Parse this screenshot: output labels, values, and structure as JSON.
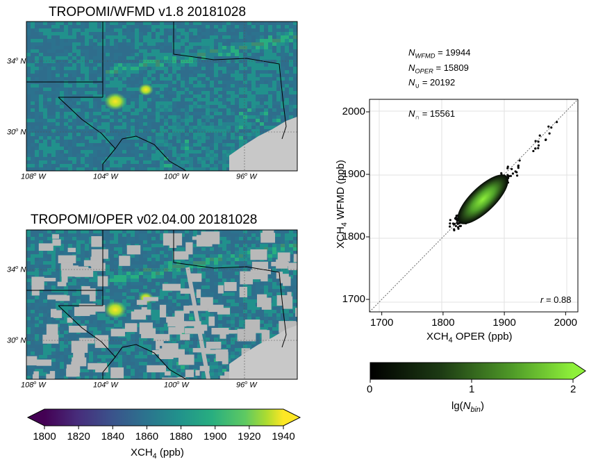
{
  "maps": [
    {
      "title": "TROPOMI/WFMD v1.8  20181028",
      "lat_ticks": [
        "34",
        "30"
      ],
      "lon_ticks": [
        "108",
        "104",
        "100",
        "96"
      ],
      "lat_suffix": "N",
      "lon_suffix": "W",
      "has_gaps": false
    },
    {
      "title": "TROPOMI/OPER v02.04.00  20181028",
      "lat_ticks": [
        "34",
        "30"
      ],
      "lon_ticks": [
        "108",
        "104",
        "100",
        "96"
      ],
      "lat_suffix": "N",
      "lon_suffix": "W",
      "has_gaps": true
    }
  ],
  "map_colorbar": {
    "label_pre": "XCH",
    "label_sub": "4",
    "label_post": " (ppb)",
    "ticks": [
      "1800",
      "1820",
      "1840",
      "1860",
      "1880",
      "1900",
      "1920",
      "1940"
    ],
    "range": [
      1800,
      1940
    ],
    "colormap": "viridis",
    "extend": "both"
  },
  "scatter": {
    "stats": {
      "n_wfmd_label": "N",
      "n_wfmd_sub": "WFMD",
      "n_wfmd_value": " = 19944",
      "n_oper_label": "N",
      "n_oper_sub": "OPER",
      "n_oper_value": " = 15809",
      "n_union_label": "N",
      "n_union_sub": "∪",
      "n_union_value": " = 20192",
      "n_inter_label": "N",
      "n_inter_sub": "∩",
      "n_inter_value": " = 15561",
      "r_label": "r",
      "r_value": " = 0.88"
    },
    "xlabel_pre": "XCH",
    "xlabel_sub": "4",
    "xlabel_post": " OPER (ppb)",
    "ylabel_pre": "XCH",
    "ylabel_sub": "4",
    "ylabel_post": " WFMD (ppb)",
    "xticks": [
      "1700",
      "1800",
      "1900",
      "2000"
    ],
    "yticks": [
      "1700",
      "1800",
      "1900",
      "2000"
    ]
  },
  "scatter_colorbar": {
    "label_pre": "lg(",
    "label_var": "N",
    "label_sub": "bin",
    "label_post": ")",
    "ticks": [
      "0",
      "1",
      "2"
    ],
    "range": [
      0,
      2
    ],
    "extend": "max"
  },
  "chart_data": {
    "type": "scatter",
    "xlim": [
      1680,
      2020
    ],
    "ylim": [
      1680,
      2020
    ],
    "grid": true,
    "one_to_one_line": true,
    "x_center": 1865,
    "y_center": 1860,
    "x_range": [
      1810,
      1990
    ],
    "y_range": [
      1820,
      1980
    ],
    "r": 0.88,
    "n_wfmd": 19944,
    "n_oper": 15809,
    "n_union": 20192,
    "n_intersection": 15561
  }
}
